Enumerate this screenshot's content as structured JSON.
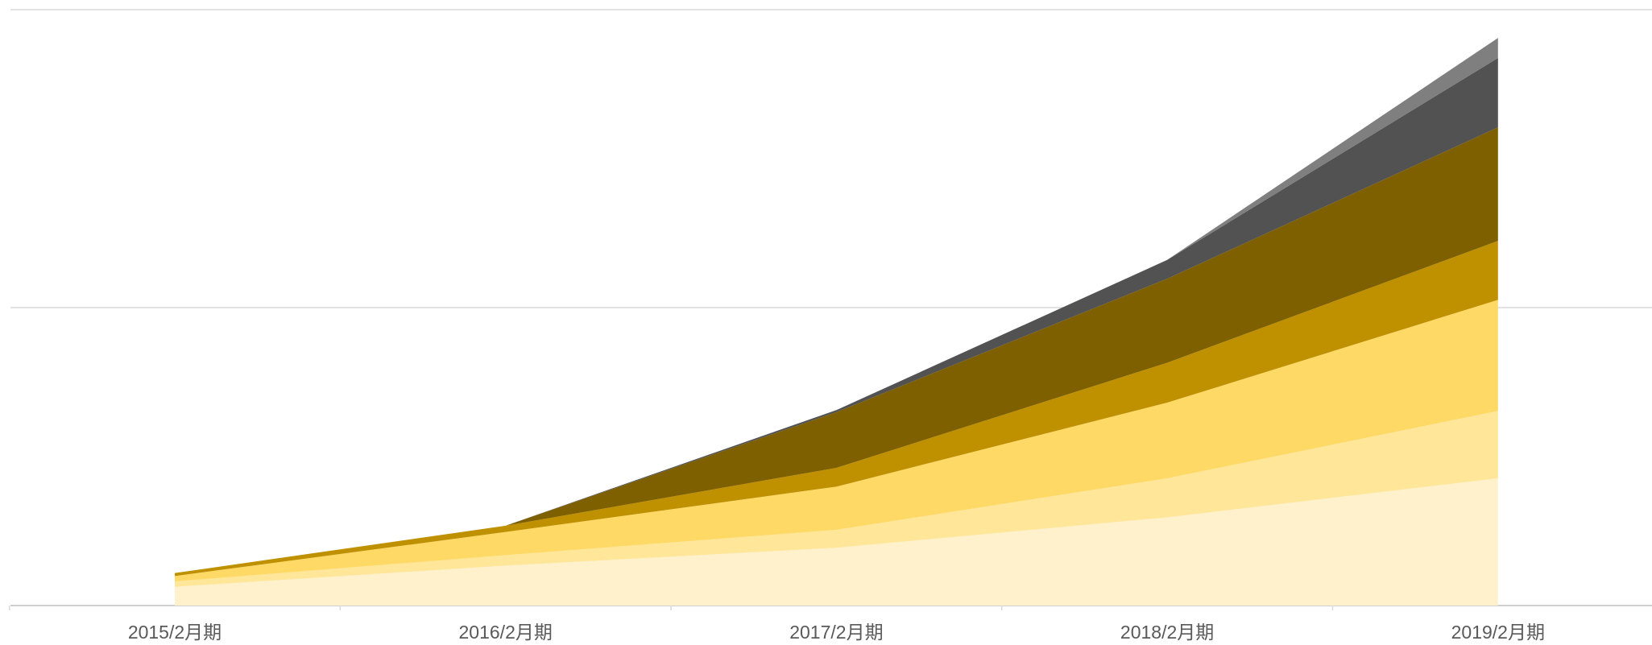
{
  "chart_data": {
    "type": "stacked_area",
    "categories": [
      "2015/2月期",
      "2016/2月期",
      "2017/2月期",
      "2018/2月期",
      "2019/2月期"
    ],
    "series": [
      {
        "color": "#fff1cc",
        "values": [
          6.3,
          13.4,
          19.4,
          29.6,
          42.7
        ]
      },
      {
        "color": "#ffe699",
        "values": [
          1.8,
          3.5,
          6.0,
          13.1,
          22.6
        ]
      },
      {
        "color": "#ffd966",
        "values": [
          1.8,
          7.8,
          14.5,
          25.4,
          37.3
        ]
      },
      {
        "color": "#bf9000",
        "values": [
          1.0,
          2.1,
          6.3,
          13.4,
          19.8
        ]
      },
      {
        "color": "#7f6000",
        "values": [
          0,
          0,
          18.7,
          28.2,
          38.1
        ]
      },
      {
        "color": "#525252",
        "values": [
          0,
          0,
          0.7,
          6.3,
          23.3
        ]
      },
      {
        "color": "#7f7f7f",
        "values": [
          0,
          0,
          0,
          0,
          6.7
        ]
      }
    ],
    "ylim": [
      0,
      200
    ],
    "yticks": [
      0,
      100,
      200
    ],
    "grid": true
  }
}
